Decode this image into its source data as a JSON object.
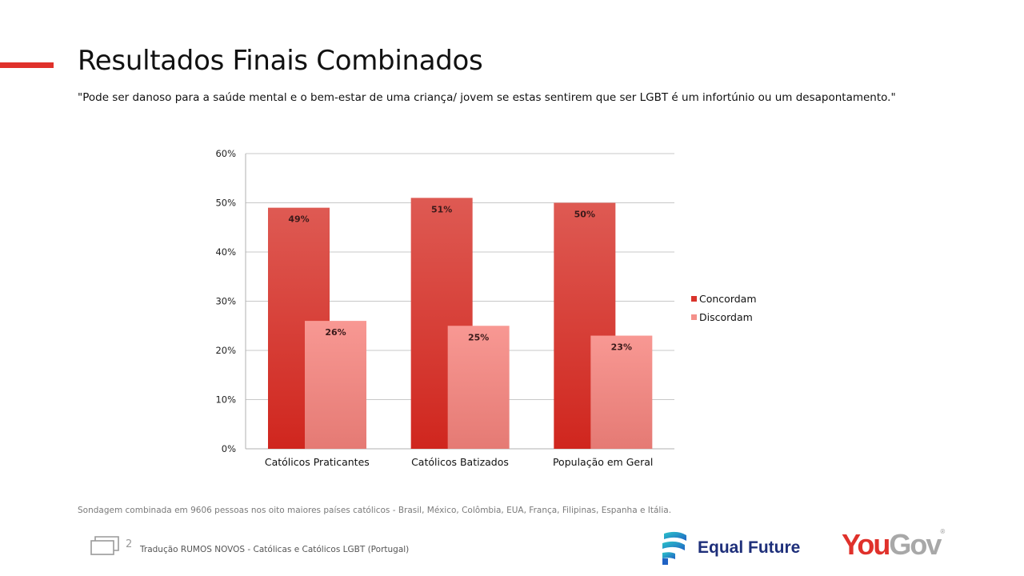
{
  "slide": {
    "title": "Resultados Finais Combinados",
    "subtitle": "\"Pode ser danoso para a saúde mental e o bem-estar de uma criança/ jovem se estas sentirem que ser LGBT é um infortúnio ou um desapontamento.\"",
    "footnote": "Sondagem combinada em 9606 pessoas nos oito maiores países católicos - Brasil, México, Colômbia, EUA, França, Filipinas, Espanha e Itália.",
    "page_number": "2",
    "footer_text": "Tradução RUMOS NOVOS - Católicas e Católicos LGBT (Portugal)",
    "accent_color": "#e0312b"
  },
  "logos": {
    "equal_future": "Equal Future",
    "yougov_you": "You",
    "yougov_gov": "Gov",
    "yougov_mark": "®"
  },
  "chart_data": {
    "type": "bar",
    "categories": [
      "Católicos Praticantes",
      "Católicos Batizados",
      "População em Geral"
    ],
    "series": [
      {
        "name": "Concordam",
        "values": [
          49,
          51,
          50
        ],
        "labels": [
          "49%",
          "51%",
          "50%"
        ],
        "color": "#d9332b"
      },
      {
        "name": "Discordam",
        "values": [
          26,
          25,
          23
        ],
        "labels": [
          "26%",
          "25%",
          "23%"
        ],
        "color": "#f4908a"
      }
    ],
    "ylim": [
      0,
      60
    ],
    "yticks": [
      "0%",
      "10%",
      "20%",
      "30%",
      "40%",
      "50%",
      "60%"
    ],
    "grid": true,
    "legend": "right"
  }
}
